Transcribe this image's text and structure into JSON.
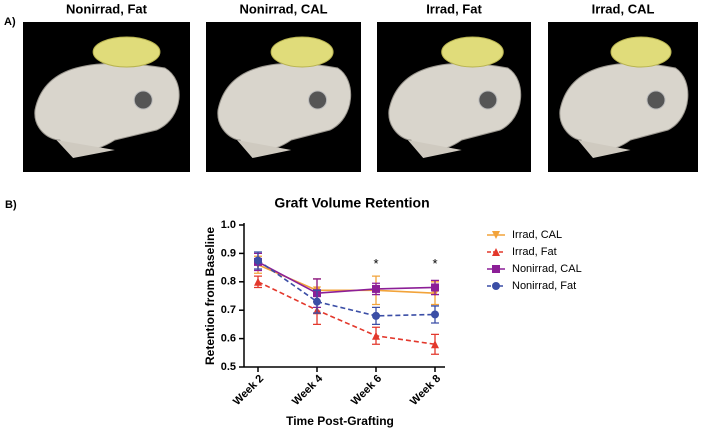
{
  "panel_a": {
    "label": "A)",
    "titles": [
      "Nonirrad, Fat",
      "Nonirrad, CAL",
      "Irrad, Fat",
      "Irrad, CAL"
    ]
  },
  "chart_data": {
    "type": "line",
    "panel_label": "B)",
    "title": "Graft Volume Retention",
    "x_label": "Time Post-Grafting",
    "y_label": "Retention from Baseline",
    "categories": [
      "Week 2",
      "Week 4",
      "Week 6",
      "Week 8"
    ],
    "ylim": [
      0.5,
      1.0
    ],
    "yticks": [
      0.5,
      0.6,
      0.7,
      0.8,
      0.9,
      {
        "value": 1.0,
        "label": "1.0"
      }
    ],
    "series": [
      {
        "name": "Irrad, CAL",
        "color": "#f2a33a",
        "marker": "triangle-down",
        "dashed": false,
        "values": [
          0.86,
          0.77,
          0.77,
          0.76
        ],
        "errors": [
          0.03,
          0.04,
          0.05,
          0.04
        ]
      },
      {
        "name": "Irrad, Fat",
        "color": "#e3382c",
        "marker": "triangle-up",
        "dashed": true,
        "values": [
          0.8,
          0.7,
          0.61,
          0.58
        ],
        "errors": [
          0.02,
          0.05,
          0.03,
          0.035
        ]
      },
      {
        "name": "Nonirrad, CAL",
        "color": "#8c1f97",
        "marker": "square",
        "dashed": false,
        "values": [
          0.87,
          0.76,
          0.775,
          0.78
        ],
        "errors": [
          0.03,
          0.05,
          0.02,
          0.025
        ]
      },
      {
        "name": "Nonirrad, Fat",
        "color": "#3b4ea6",
        "marker": "circle",
        "dashed": true,
        "values": [
          0.875,
          0.73,
          0.68,
          0.685
        ],
        "errors": [
          0.03,
          0.04,
          0.03,
          0.03
        ]
      }
    ],
    "annotations": [
      {
        "text": "*",
        "x": "Week 6",
        "y": 0.86
      },
      {
        "text": "*",
        "x": "Week 8",
        "y": 0.86
      }
    ],
    "legend": "right"
  }
}
